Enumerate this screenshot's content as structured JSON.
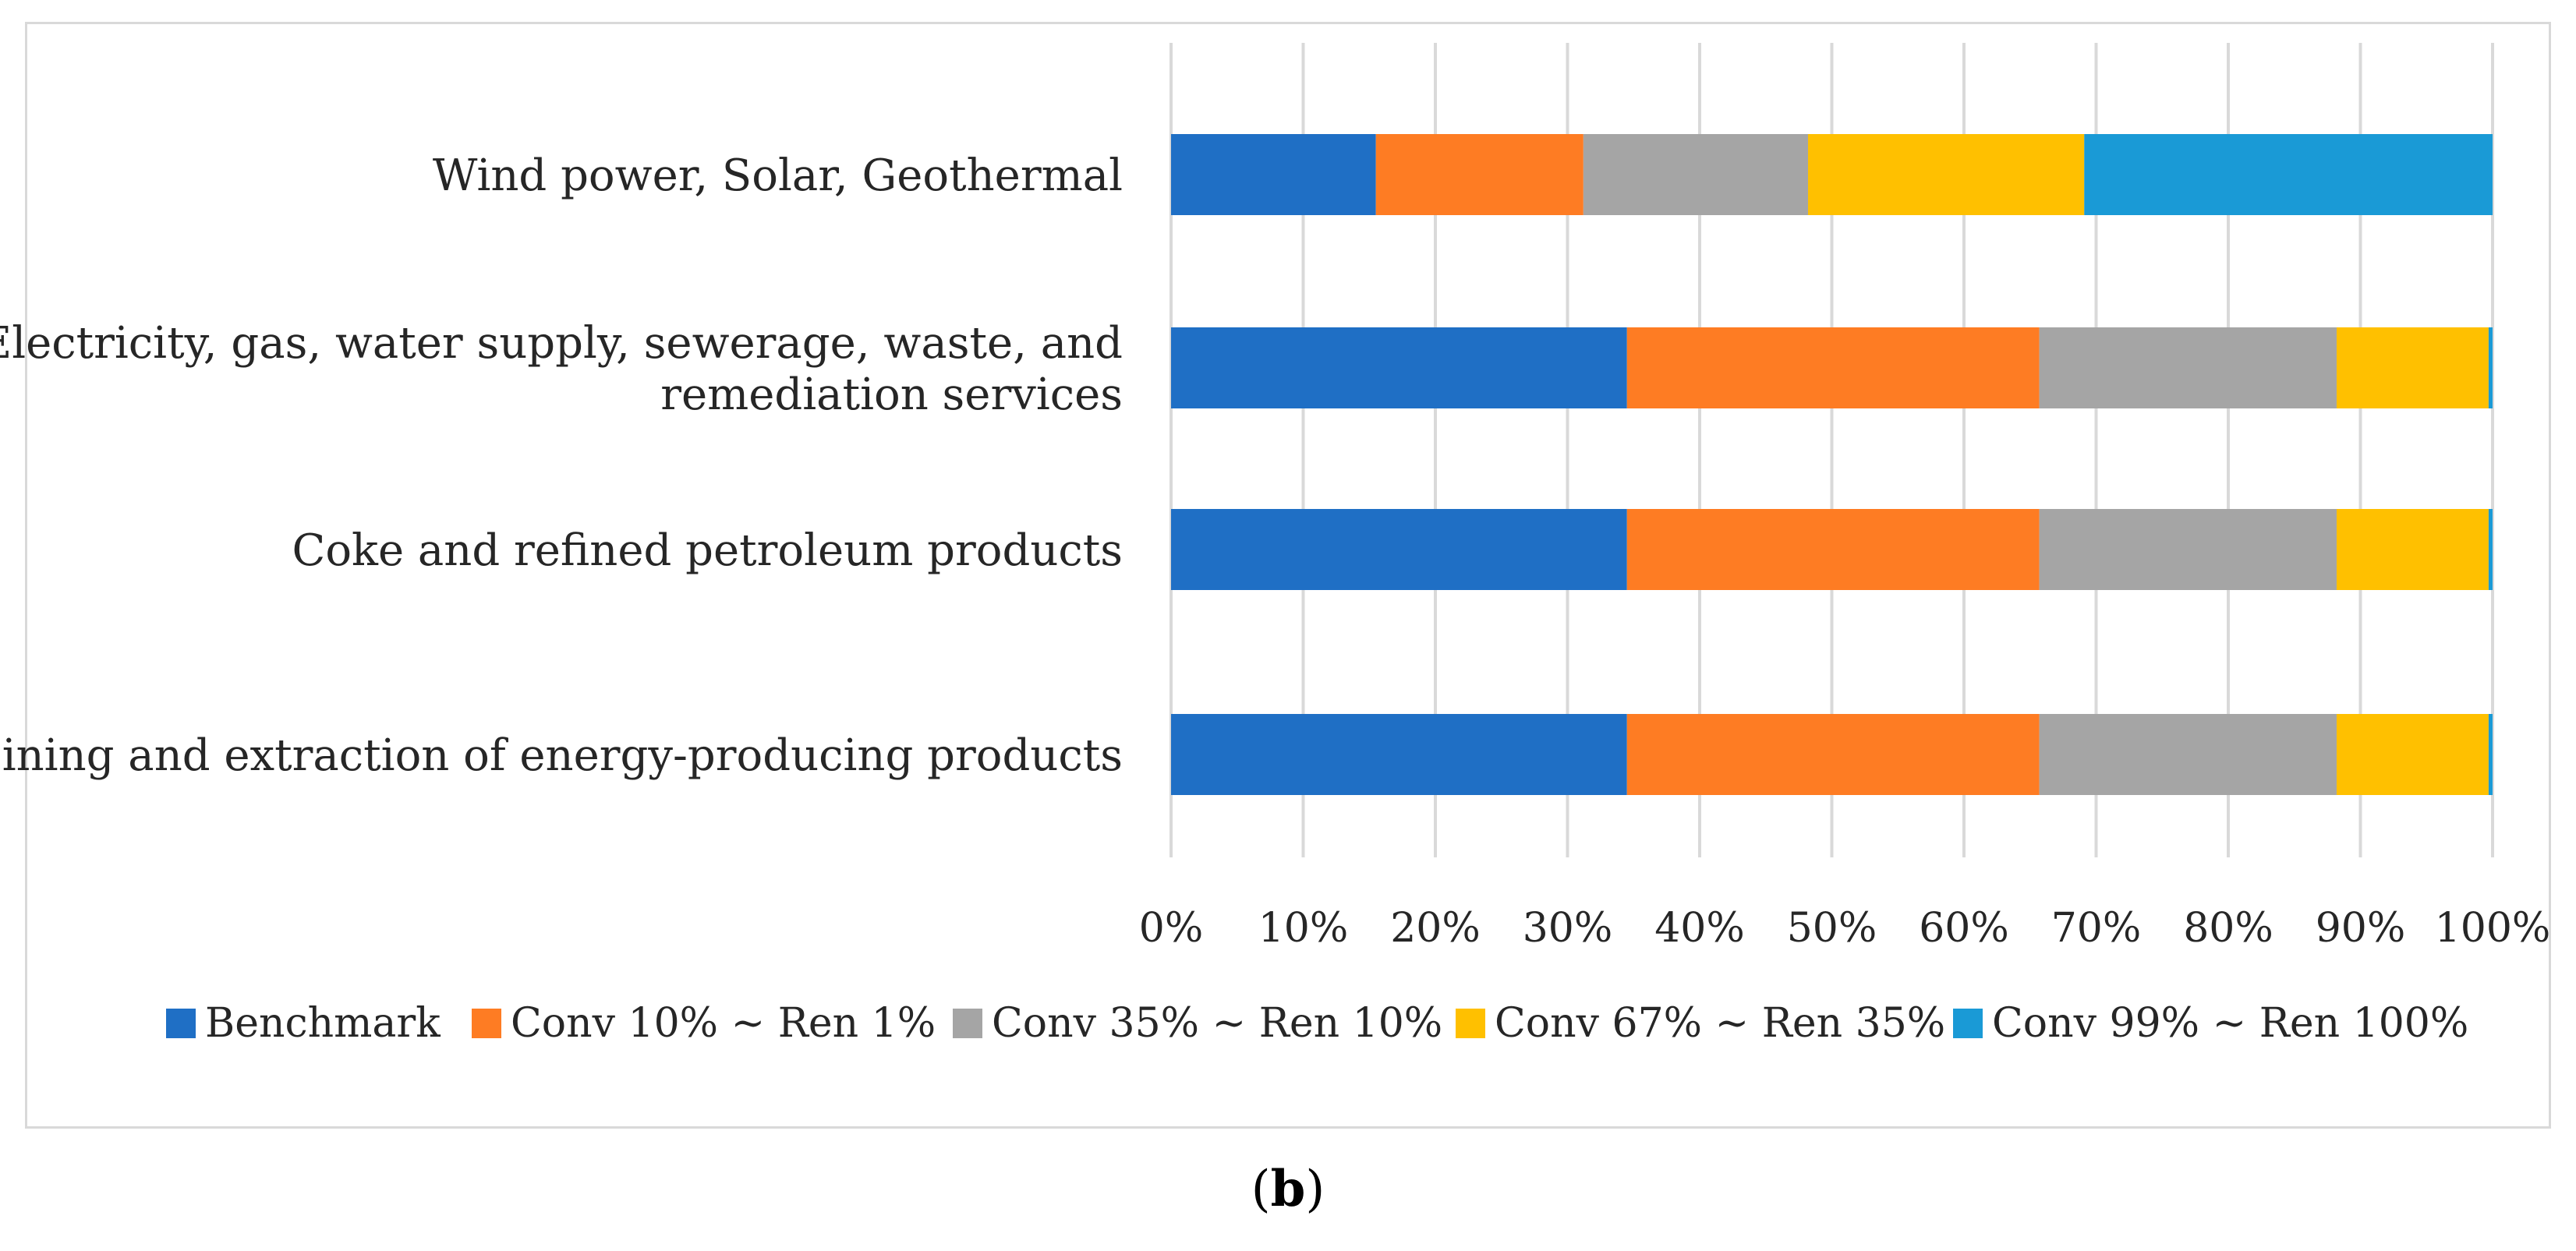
{
  "chart_data": {
    "type": "bar",
    "orientation": "horizontal",
    "stacked": "percent",
    "categories": [
      [
        "Wind power, Solar, Geothermal"
      ],
      [
        "Electricity, gas, water supply, sewerage, waste, and",
        "remediation services"
      ],
      [
        "Coke and refined petroleum products"
      ],
      [
        "Mining and extraction of energy-producing products"
      ]
    ],
    "series": [
      {
        "name": "Benchmark",
        "color": "#1f6fc5",
        "values": [
          15.5,
          34.5,
          34.5,
          34.5
        ]
      },
      {
        "name": "Conv 10% ~ Ren 1%",
        "color": "#fe7c23",
        "values": [
          15.7,
          31.2,
          31.2,
          31.2
        ]
      },
      {
        "name": "Conv 35% ~ Ren 10%",
        "color": "#a5a5a5",
        "values": [
          17.0,
          22.5,
          22.5,
          22.5
        ]
      },
      {
        "name": "Conv 67% ~ Ren 35%",
        "color": "#ffc000",
        "values": [
          20.9,
          11.5,
          11.5,
          11.5
        ]
      },
      {
        "name": "Conv 99% ~ Ren 100%",
        "color": "#1a9ad6",
        "values": [
          30.9,
          0.3,
          0.3,
          0.3
        ]
      }
    ],
    "x_ticks": [
      "0%",
      "10%",
      "20%",
      "30%",
      "40%",
      "50%",
      "60%",
      "70%",
      "80%",
      "90%",
      "100%"
    ],
    "xlim": [
      0,
      100
    ],
    "grid": true,
    "legend_position": "bottom"
  },
  "caption": {
    "label": "b"
  }
}
